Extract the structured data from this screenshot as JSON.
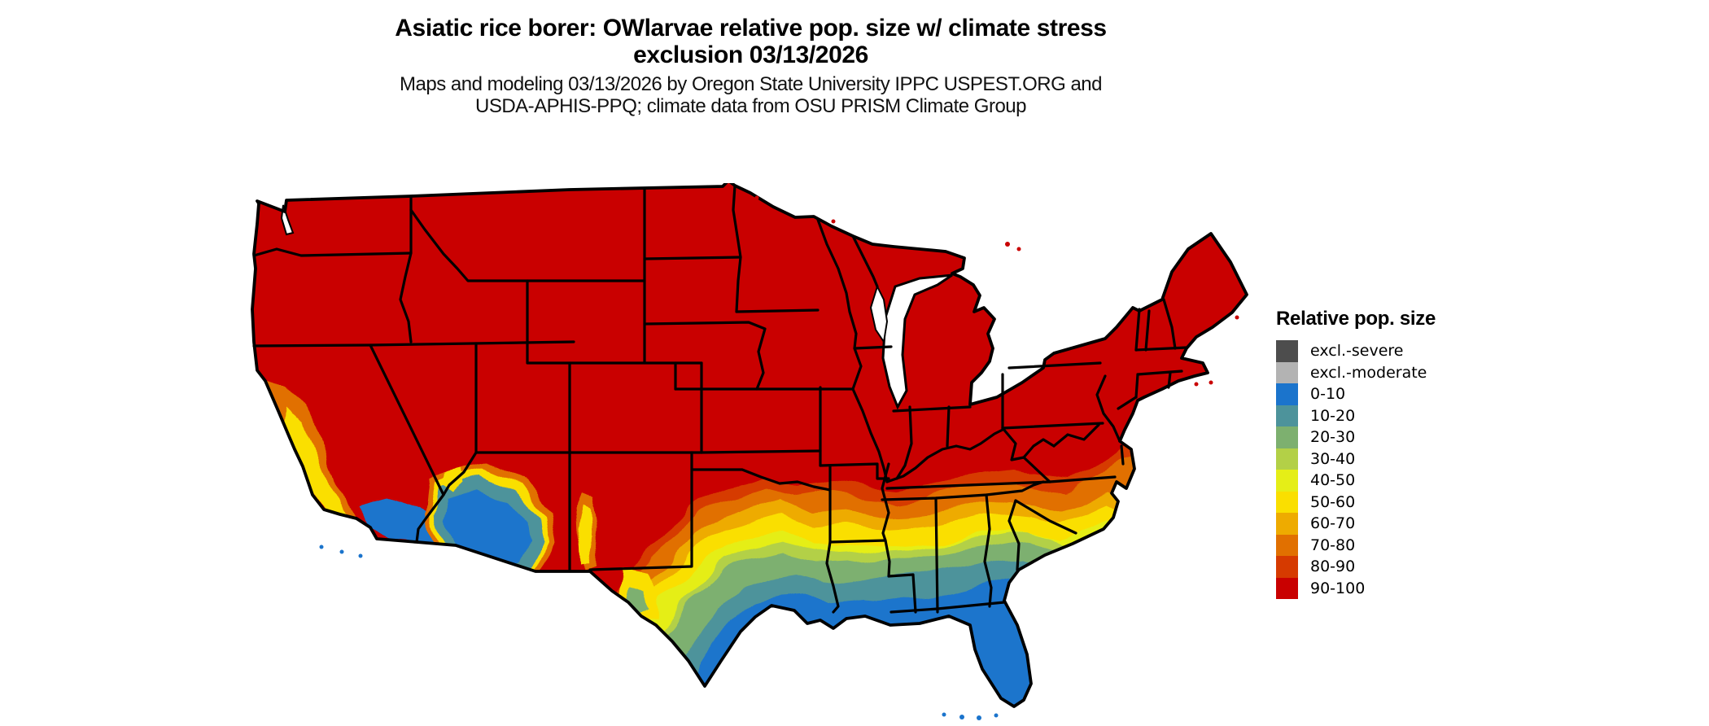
{
  "page": {
    "background_color": "#FFFFFF"
  },
  "title": {
    "line1": "Asiatic rice borer: OWlarvae relative pop. size w/ climate stress",
    "line2": "exclusion 03/13/2026"
  },
  "subtitle": {
    "line1": "Maps and modeling 03/13/2026 by Oregon State University IPPC USPEST.ORG and",
    "line2": "USDA-APHIS-PPQ; climate data from OSU PRISM Climate Group"
  },
  "legend": {
    "title": "Relative pop. size",
    "entries": [
      {
        "label": "excl.-severe",
        "color": "#4D4D4D"
      },
      {
        "label": "excl.-moderate",
        "color": "#B3B3B3"
      },
      {
        "label": "0-10",
        "color": "#1B74CC"
      },
      {
        "label": "10-20",
        "color": "#4D939B"
      },
      {
        "label": "20-30",
        "color": "#7DB06F"
      },
      {
        "label": "30-40",
        "color": "#B3D047"
      },
      {
        "label": "40-50",
        "color": "#E5EE17"
      },
      {
        "label": "50-60",
        "color": "#FADF00"
      },
      {
        "label": "60-70",
        "color": "#EEAB00"
      },
      {
        "label": "70-80",
        "color": "#E17000"
      },
      {
        "label": "80-90",
        "color": "#D63A00"
      },
      {
        "label": "90-100",
        "color": "#C90000"
      }
    ]
  },
  "map": {
    "region": "Continental United States",
    "border_color": "#000000",
    "water_color": "#FFFFFF",
    "dominant_class": "90-100",
    "low_population_areas": "south Texas, Gulf Coast, Florida, southern Arizona, southern/coastal California"
  }
}
